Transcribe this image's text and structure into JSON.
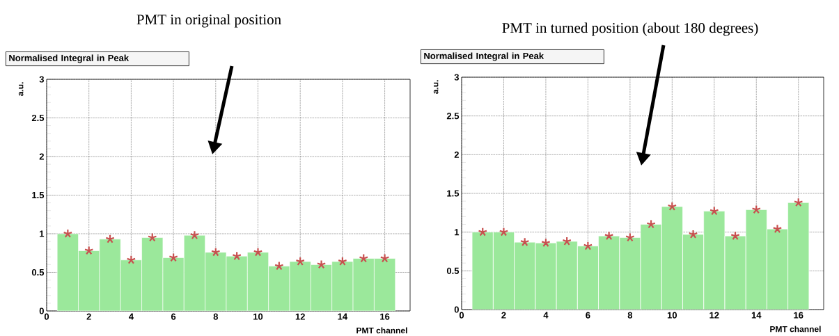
{
  "chart_data": [
    {
      "type": "bar",
      "title": "Normalised Integral in Peak",
      "xlabel": "PMT channel",
      "ylabel": "a.u.",
      "annotations": [
        "PMT in original position"
      ],
      "series": [
        {
          "color": "#9be89b",
          "x": [
            1,
            2,
            3,
            4,
            5,
            6,
            7,
            8,
            9,
            10,
            11,
            12,
            13,
            14,
            15,
            16
          ],
          "values": [
            1.0,
            0.78,
            0.93,
            0.66,
            0.95,
            0.69,
            0.98,
            0.76,
            0.71,
            0.76,
            0.58,
            0.64,
            0.6,
            0.64,
            0.68,
            0.68
          ]
        },
        {
          "type": "scatter",
          "color": "#c8504f",
          "marker": "cross",
          "x": [
            1,
            2,
            3,
            4,
            5,
            6,
            7,
            8,
            9,
            10,
            11,
            12,
            13,
            14,
            15,
            16
          ],
          "values": [
            1.0,
            0.78,
            0.93,
            0.66,
            0.95,
            0.69,
            0.98,
            0.76,
            0.71,
            0.76,
            0.58,
            0.64,
            0.6,
            0.64,
            0.68,
            0.68
          ]
        }
      ],
      "xlim": [
        0,
        17.2
      ],
      "ylim": [
        0,
        3
      ],
      "xticks": [
        0,
        2,
        4,
        6,
        8,
        10,
        12,
        14,
        16
      ],
      "yticks": [
        0,
        0.5,
        1,
        1.5,
        2,
        2.5,
        3
      ],
      "grid": true
    },
    {
      "type": "bar",
      "title": "Normalised Integral in Peak",
      "xlabel": "PMT channel",
      "ylabel": "a.u.",
      "annotations": [
        "PMT in turned position (about 180 degrees)"
      ],
      "series": [
        {
          "color": "#9be89b",
          "x": [
            1,
            2,
            3,
            4,
            5,
            6,
            7,
            8,
            9,
            10,
            11,
            12,
            13,
            14,
            15,
            16
          ],
          "values": [
            1.0,
            1.0,
            0.87,
            0.86,
            0.88,
            0.82,
            0.95,
            0.93,
            1.1,
            1.33,
            0.97,
            1.27,
            0.95,
            1.29,
            1.04,
            1.38
          ]
        },
        {
          "type": "scatter",
          "color": "#c8504f",
          "marker": "cross",
          "x": [
            1,
            2,
            3,
            4,
            5,
            6,
            7,
            8,
            9,
            10,
            11,
            12,
            13,
            14,
            15,
            16
          ],
          "values": [
            1.0,
            1.0,
            0.87,
            0.86,
            0.88,
            0.82,
            0.95,
            0.93,
            1.1,
            1.33,
            0.97,
            1.27,
            0.95,
            1.29,
            1.04,
            1.38
          ]
        }
      ],
      "xlim": [
        0,
        17.2
      ],
      "ylim": [
        0,
        3
      ],
      "xticks": [
        0,
        2,
        4,
        6,
        8,
        10,
        12,
        14,
        16
      ],
      "yticks": [
        0,
        0.5,
        1,
        1.5,
        2,
        2.5,
        3
      ],
      "grid": true
    }
  ]
}
